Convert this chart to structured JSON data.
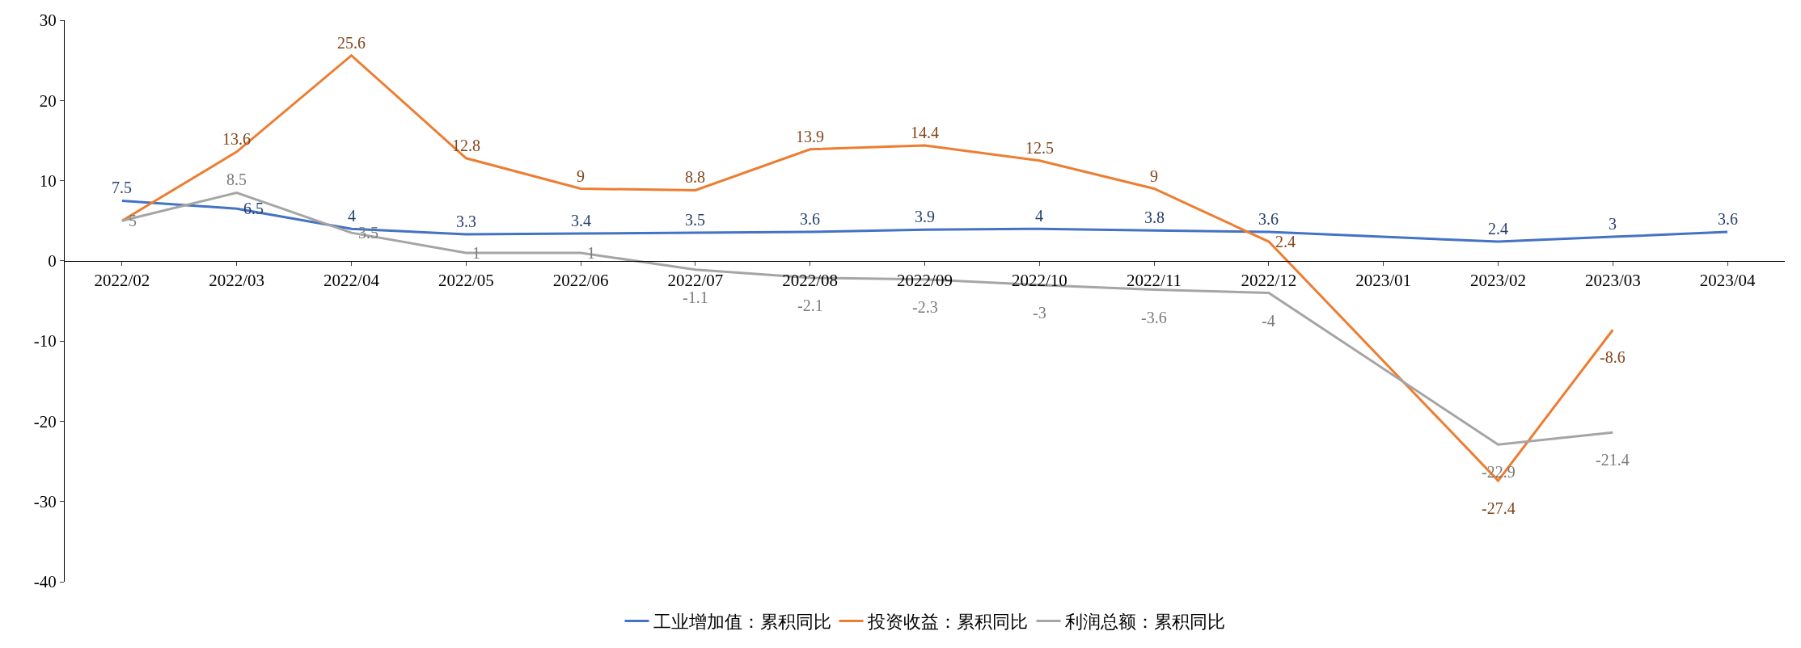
{
  "chart_data": {
    "type": "line",
    "categories": [
      "2022/02",
      "2022/03",
      "2022/04",
      "2022/05",
      "2022/06",
      "2022/07",
      "2022/08",
      "2022/09",
      "2022/10",
      "2022/11",
      "2022/12",
      "2023/01",
      "2023/02",
      "2023/03",
      "2023/04"
    ],
    "series": [
      {
        "name": "工业增加值：累积同比",
        "color": "#4472c4",
        "values": [
          7.5,
          6.5,
          4,
          3.3,
          3.4,
          3.5,
          3.6,
          3.9,
          4,
          3.8,
          3.6,
          null,
          2.4,
          3,
          3.6
        ]
      },
      {
        "name": "投资收益：累积同比",
        "color": "#ed7d31",
        "values": [
          5,
          13.6,
          25.6,
          12.8,
          9,
          8.8,
          13.9,
          14.4,
          12.5,
          9,
          2.4,
          null,
          -27.4,
          -8.6,
          null
        ],
        "value_labels": [
          null,
          "13.6",
          "25.6",
          "12.8",
          "9",
          "8.8",
          "13.9",
          "14.4",
          "12.5",
          "9",
          "2.4",
          null,
          "-27.4",
          "-8.6",
          null
        ]
      },
      {
        "name": "利润总额：累积同比",
        "color": "#a5a5a5",
        "values": [
          5,
          8.5,
          3.5,
          1,
          1,
          -1.1,
          -2.1,
          -2.3,
          -3,
          -3.6,
          -4,
          null,
          -22.9,
          -21.4,
          null
        ]
      }
    ],
    "ylim": [
      -40,
      30
    ],
    "yticks": [
      -40,
      -30,
      -20,
      -10,
      0,
      10,
      20,
      30
    ],
    "grid": false,
    "legend": "bottom",
    "marker": "none",
    "line_style": "solid",
    "data_labels": true
  }
}
